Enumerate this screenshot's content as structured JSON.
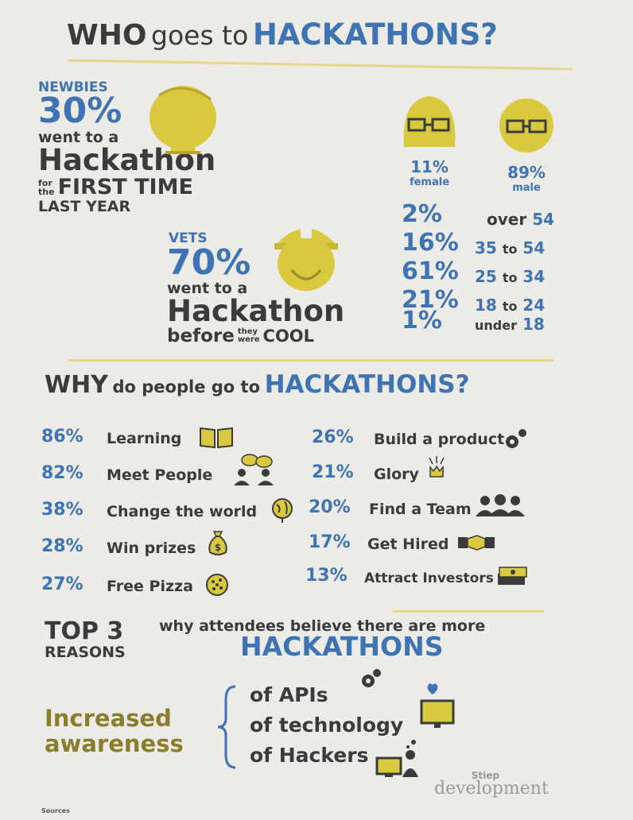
{
  "header": {
    "title_who": "WHO",
    "title_goes_to": "goes to",
    "title_hackathons": "HACKATHONS?"
  },
  "newbies": {
    "label": "NEWBIES",
    "percent": "30%",
    "line1": "went to a",
    "line2": "Hackathon",
    "for": "for",
    "the": "the",
    "first_time": "FIRST TIME",
    "last_year": "LAST YEAR"
  },
  "vets": {
    "label": "VETS",
    "percent": "70%",
    "line1": "went to a",
    "line2": "Hackathon",
    "before": "before",
    "they": "they",
    "were": "were",
    "cool": "COOL"
  },
  "gender": {
    "female_pct": "11%",
    "female_label": "female",
    "male_pct": "89%",
    "male_label": "male"
  },
  "ages": [
    {
      "pct": "2%",
      "pre": "over",
      "num": "54",
      "mid": "",
      "num2": ""
    },
    {
      "pct": "16%",
      "pre": "",
      "num": "35",
      "mid": "to",
      "num2": "54"
    },
    {
      "pct": "61%",
      "pre": "",
      "num": "25",
      "mid": "to",
      "num2": "34"
    },
    {
      "pct": "21%",
      "pre": "",
      "num": "18",
      "mid": "to",
      "num2": "24"
    },
    {
      "pct": "1%",
      "pre": "under",
      "num": "18",
      "mid": "",
      "num2": ""
    }
  ],
  "why": {
    "word_why": "WHY",
    "middle": "do people go to",
    "word_hackathons": "HACKATHONS?"
  },
  "reasons_left": [
    {
      "pct": "86%",
      "label": "Learning",
      "icon": "book-icon"
    },
    {
      "pct": "82%",
      "label": "Meet People",
      "icon": "people-chat-icon"
    },
    {
      "pct": "38%",
      "label": "Change the world",
      "icon": "globe-icon"
    },
    {
      "pct": "28%",
      "label": "Win prizes",
      "icon": "money-bag-icon"
    },
    {
      "pct": "27%",
      "label": "Free Pizza",
      "icon": "pizza-icon"
    }
  ],
  "reasons_right": [
    {
      "pct": "26%",
      "label": "Build a product",
      "icon": "gears-icon"
    },
    {
      "pct": "21%",
      "label": "Glory",
      "icon": "crown-icon"
    },
    {
      "pct": "20%",
      "label": "Find a Team",
      "icon": "team-icon"
    },
    {
      "pct": "17%",
      "label": "Get Hired",
      "icon": "handshake-icon"
    },
    {
      "pct": "13%",
      "label": "Attract Investors",
      "icon": "cash-stack-icon"
    }
  ],
  "top3": {
    "top": "TOP 3",
    "reasons": "REASONS",
    "why_line": "why attendees believe there are more",
    "hackathons": "HACKATHONS",
    "increased": "Increased",
    "awareness": "awareness",
    "items": [
      "of APIs",
      "of technology",
      "of Hackers"
    ]
  },
  "footer": {
    "logo_line1": "Stiep",
    "logo_line2": "development",
    "sources": "Sources"
  },
  "colors": {
    "blue": "#3f74b4",
    "dark": "#3b3b3b",
    "yellow": "#d9c93f",
    "olive": "#8a7d2c",
    "line": "#e6d68a"
  }
}
